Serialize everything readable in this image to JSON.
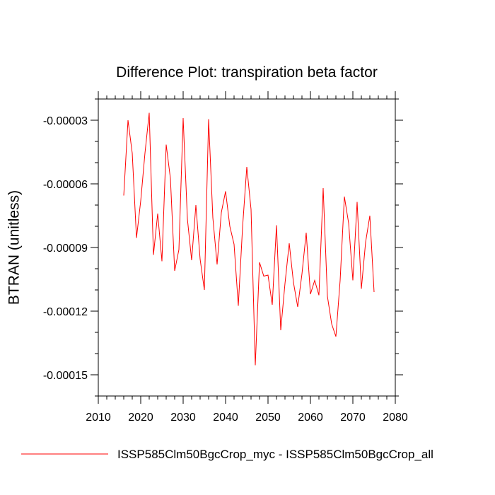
{
  "chart_data": {
    "type": "line",
    "title": "Difference Plot: transpiration beta factor",
    "xlabel": "",
    "ylabel": "BTRAN  (unitless)",
    "xlim": [
      2010,
      2080
    ],
    "ylim": [
      -0.00016,
      -2e-05
    ],
    "x_ticks": [
      2010,
      2020,
      2030,
      2040,
      2050,
      2060,
      2070,
      2080
    ],
    "x_tick_labels": [
      "2010",
      "2020",
      "2030",
      "2040",
      "2050",
      "2060",
      "2070",
      "2080"
    ],
    "y_ticks": [
      -3e-05,
      -6e-05,
      -9e-05,
      -0.00012,
      -0.00015
    ],
    "y_tick_labels": [
      "-0.00003",
      "-0.00006",
      "-0.00009",
      "-0.00012",
      "-0.00015"
    ],
    "grid": false,
    "legend_position": "bottom",
    "series": [
      {
        "name": "ISSP585Clm50BgcCrop_myc - ISSP585Clm50BgcCrop_all",
        "color": "#ff0000",
        "x": [
          2016,
          2017,
          2018,
          2019,
          2020,
          2021,
          2022,
          2023,
          2024,
          2025,
          2026,
          2027,
          2028,
          2029,
          2030,
          2031,
          2032,
          2033,
          2034,
          2035,
          2036,
          2037,
          2038,
          2039,
          2040,
          2041,
          2042,
          2043,
          2044,
          2045,
          2046,
          2047,
          2048,
          2049,
          2050,
          2051,
          2052,
          2053,
          2054,
          2055,
          2056,
          2057,
          2058,
          2059,
          2060,
          2061,
          2062,
          2063,
          2064,
          2065,
          2066,
          2067,
          2068,
          2069,
          2070,
          2071,
          2072,
          2073,
          2074,
          2075
        ],
        "values": [
          -6.55e-05,
          -3e-05,
          -4.55e-05,
          -8.55e-05,
          -6.8e-05,
          -4.55e-05,
          -2.65e-05,
          -9.35e-05,
          -7.4e-05,
          -9.65e-05,
          -4.15e-05,
          -5.75e-05,
          -0.000101,
          -9.1e-05,
          -2.9e-05,
          -7.65e-05,
          -9.6e-05,
          -7e-05,
          -9.55e-05,
          -0.00011,
          -2.95e-05,
          -7.6e-05,
          -9.8e-05,
          -7.35e-05,
          -6.35e-05,
          -8e-05,
          -8.85e-05,
          -0.0001175,
          -8.05e-05,
          -5.2e-05,
          -7.2e-05,
          -0.0001455,
          -9.7e-05,
          -0.0001035,
          -0.000103,
          -0.000117,
          -7.95e-05,
          -0.000129,
          -0.000107,
          -8.8e-05,
          -0.0001065,
          -0.000118,
          -0.0001025,
          -8.3e-05,
          -0.000112,
          -0.0001055,
          -0.0001125,
          -6.2e-05,
          -0.000113,
          -0.000126,
          -0.000132,
          -0.0001055,
          -6.6e-05,
          -7.85e-05,
          -0.0001055,
          -6.85e-05,
          -0.0001095,
          -8.75e-05,
          -7.5e-05,
          -0.000111
        ]
      }
    ]
  }
}
